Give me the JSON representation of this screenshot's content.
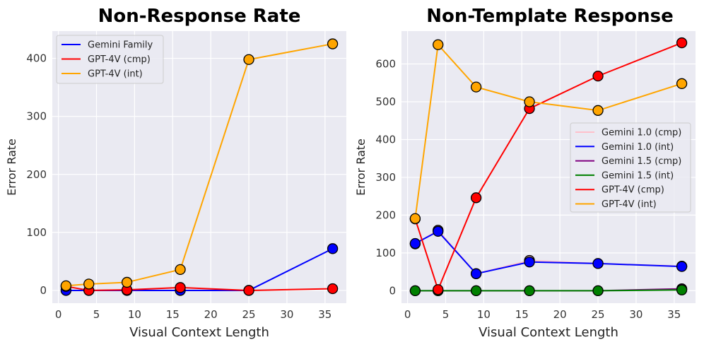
{
  "chart_data": [
    {
      "type": "line",
      "title": "Non-Response Rate",
      "xlabel": "Visual Context Length",
      "ylabel": "Error Rate",
      "xlim": [
        -0.8,
        37.8
      ],
      "ylim": [
        -22,
        447
      ],
      "xticks": [
        0,
        5,
        10,
        15,
        20,
        25,
        30,
        35
      ],
      "yticks": [
        0,
        100,
        200,
        300,
        400
      ],
      "x": [
        1,
        4,
        9,
        16,
        25,
        36
      ],
      "legend_position": "upper-left",
      "series": [
        {
          "name": "Gemini Family",
          "color": "#0000ff",
          "values": [
            0,
            0,
            0,
            0,
            0,
            72
          ]
        },
        {
          "name": "GPT-4V (cmp)",
          "color": "#ff0000",
          "values": [
            7,
            0,
            1,
            5,
            0,
            3
          ]
        },
        {
          "name": "GPT-4V (int)",
          "color": "#ffa500",
          "values": [
            8,
            11,
            14,
            36,
            398,
            425
          ]
        }
      ]
    },
    {
      "type": "line",
      "title": "Non-Template Response",
      "xlabel": "Visual Context Length",
      "ylabel": "Error Rate",
      "xlim": [
        -0.8,
        37.8
      ],
      "ylim": [
        -33,
        687
      ],
      "xticks": [
        0,
        5,
        10,
        15,
        20,
        25,
        30,
        35
      ],
      "yticks": [
        0,
        100,
        200,
        300,
        400,
        500,
        600
      ],
      "x": [
        1,
        4,
        9,
        16,
        25,
        36
      ],
      "legend_position": "center-right",
      "series": [
        {
          "name": "Gemini 1.0 (cmp)",
          "color": "#ffc0cb",
          "values": [
            124,
            160,
            45,
            80,
            72,
            65
          ]
        },
        {
          "name": "Gemini 1.0 (int)",
          "color": "#0000ff",
          "values": [
            125,
            157,
            45,
            76,
            72,
            64
          ]
        },
        {
          "name": "Gemini 1.5 (cmp)",
          "color": "#800080",
          "values": [
            0,
            0,
            0,
            0,
            0,
            5
          ]
        },
        {
          "name": "Gemini 1.5 (int)",
          "color": "#008000",
          "values": [
            0,
            0,
            0,
            0,
            0,
            2
          ]
        },
        {
          "name": "GPT-4V (cmp)",
          "color": "#ff0000",
          "values": [
            190,
            3,
            246,
            482,
            568,
            656
          ]
        },
        {
          "name": "GPT-4V (int)",
          "color": "#ffa500",
          "values": [
            191,
            651,
            539,
            500,
            477,
            548
          ]
        }
      ]
    }
  ]
}
